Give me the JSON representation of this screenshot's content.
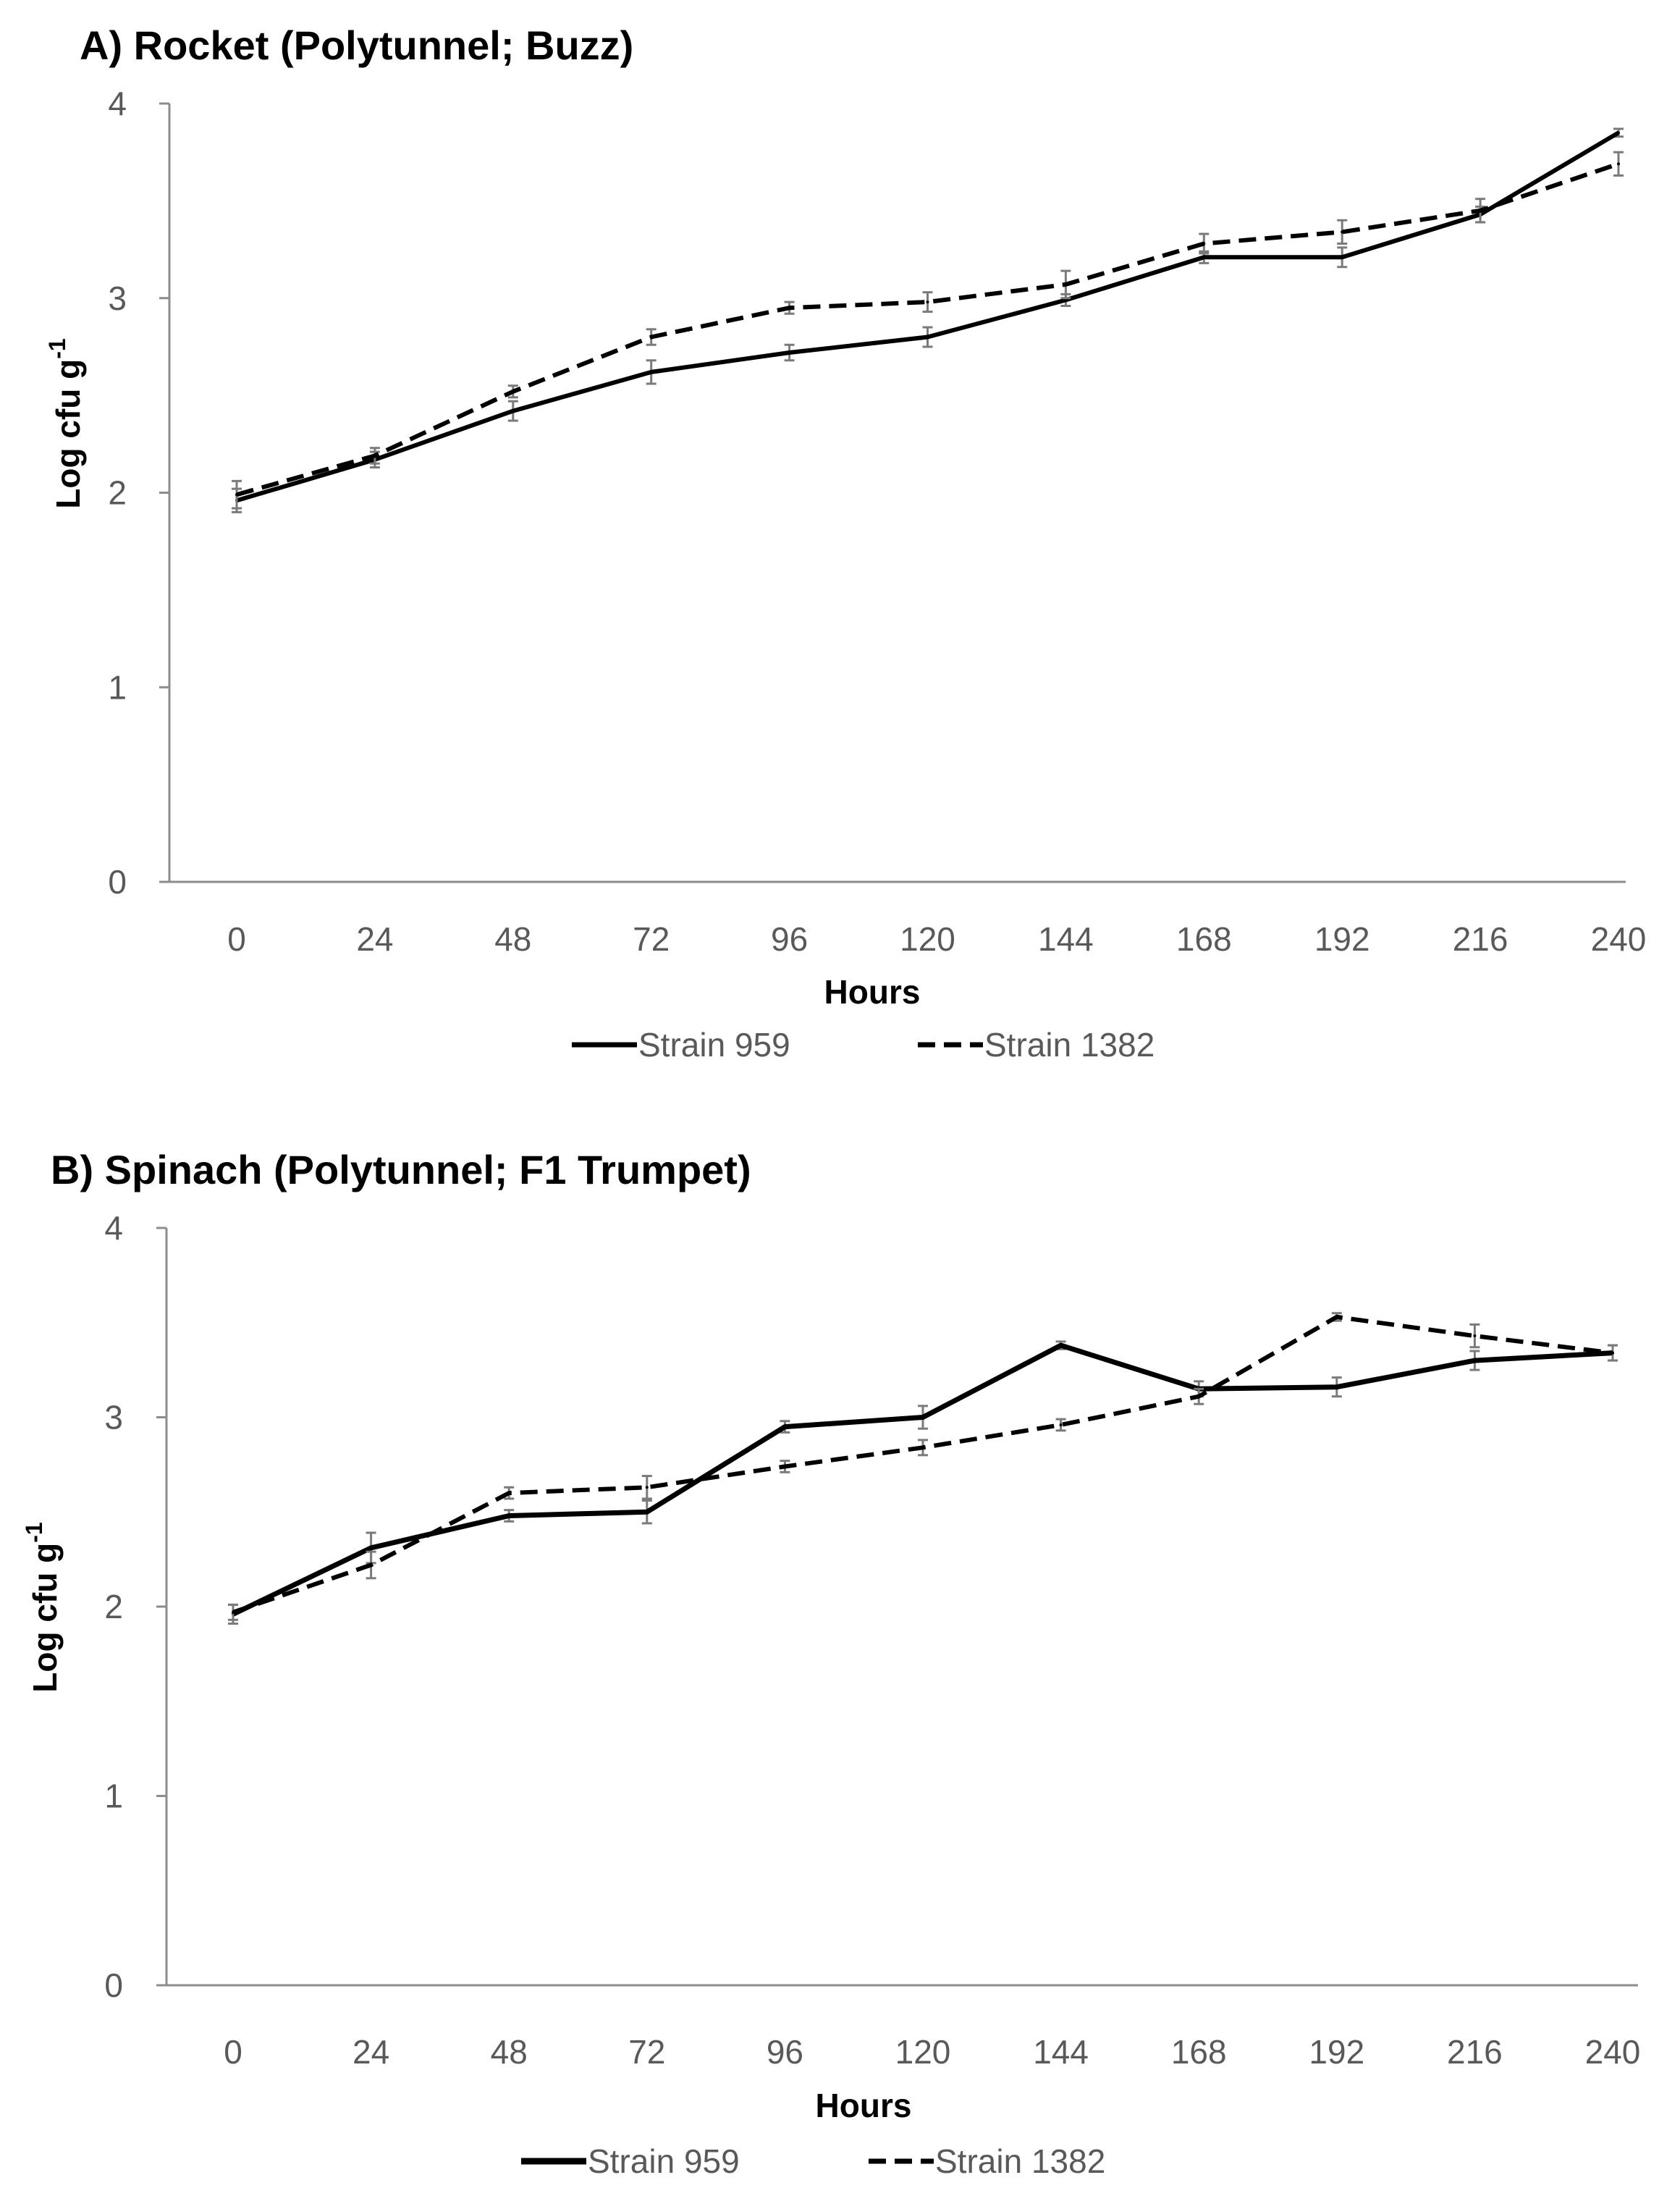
{
  "chart_data": [
    {
      "type": "line",
      "title": "A) Rocket (Polytunnel; Buzz)",
      "xlabel": "Hours",
      "ylabel": "Log cfu g",
      "ylabel_sup": "-1",
      "x": [
        0,
        24,
        48,
        72,
        96,
        120,
        144,
        168,
        192,
        216,
        240
      ],
      "x_tick_labels": [
        "0",
        "24",
        "48",
        "72",
        "96",
        "120",
        "144",
        "168",
        "192",
        "216",
        "240"
      ],
      "y_tick_labels": [
        "0",
        "1",
        "2",
        "3",
        "4"
      ],
      "ylim": [
        0,
        4
      ],
      "grid": false,
      "legend_position": "bottom",
      "series": [
        {
          "name": "Strain 959",
          "style": "solid",
          "color": "#000000",
          "values": [
            1.96,
            2.17,
            2.42,
            2.62,
            2.72,
            2.8,
            2.99,
            3.21,
            3.21,
            3.43,
            3.85
          ],
          "errors": [
            0.06,
            0.04,
            0.05,
            0.06,
            0.04,
            0.05,
            0.03,
            0.03,
            0.05,
            0.04,
            0.02
          ]
        },
        {
          "name": "Strain 1382",
          "style": "dashed",
          "color": "#000000",
          "values": [
            1.99,
            2.19,
            2.52,
            2.8,
            2.95,
            2.98,
            3.07,
            3.28,
            3.34,
            3.45,
            3.69
          ],
          "errors": [
            0.07,
            0.04,
            0.03,
            0.04,
            0.03,
            0.05,
            0.07,
            0.05,
            0.06,
            0.06,
            0.06
          ]
        }
      ]
    },
    {
      "type": "line",
      "title": "B) Spinach (Polytunnel; F1 Trumpet)",
      "xlabel": "Hours",
      "ylabel": "Log cfu g",
      "ylabel_sup": "-1",
      "x": [
        0,
        24,
        48,
        72,
        96,
        120,
        144,
        168,
        192,
        216,
        240
      ],
      "x_tick_labels": [
        "0",
        "24",
        "48",
        "72",
        "96",
        "120",
        "144",
        "168",
        "192",
        "216",
        "240"
      ],
      "y_tick_labels": [
        "0",
        "1",
        "2",
        "3",
        "4"
      ],
      "ylim": [
        0,
        4
      ],
      "grid": false,
      "legend_position": "bottom",
      "series": [
        {
          "name": "Strain 959",
          "style": "solid",
          "color": "#000000",
          "values": [
            1.96,
            2.31,
            2.48,
            2.5,
            2.95,
            3.0,
            3.38,
            3.15,
            3.16,
            3.3,
            3.34
          ],
          "errors": [
            0.05,
            0.08,
            0.03,
            0.06,
            0.03,
            0.06,
            0.02,
            0.04,
            0.05,
            0.05,
            0.04
          ]
        },
        {
          "name": "Strain 1382",
          "style": "dashed",
          "color": "#000000",
          "values": [
            1.97,
            2.22,
            2.6,
            2.63,
            2.74,
            2.84,
            2.96,
            3.11,
            3.53,
            3.43,
            3.34
          ],
          "errors": [
            0.04,
            0.07,
            0.03,
            0.06,
            0.03,
            0.04,
            0.03,
            0.04,
            0.02,
            0.06,
            0.04
          ]
        }
      ]
    }
  ]
}
